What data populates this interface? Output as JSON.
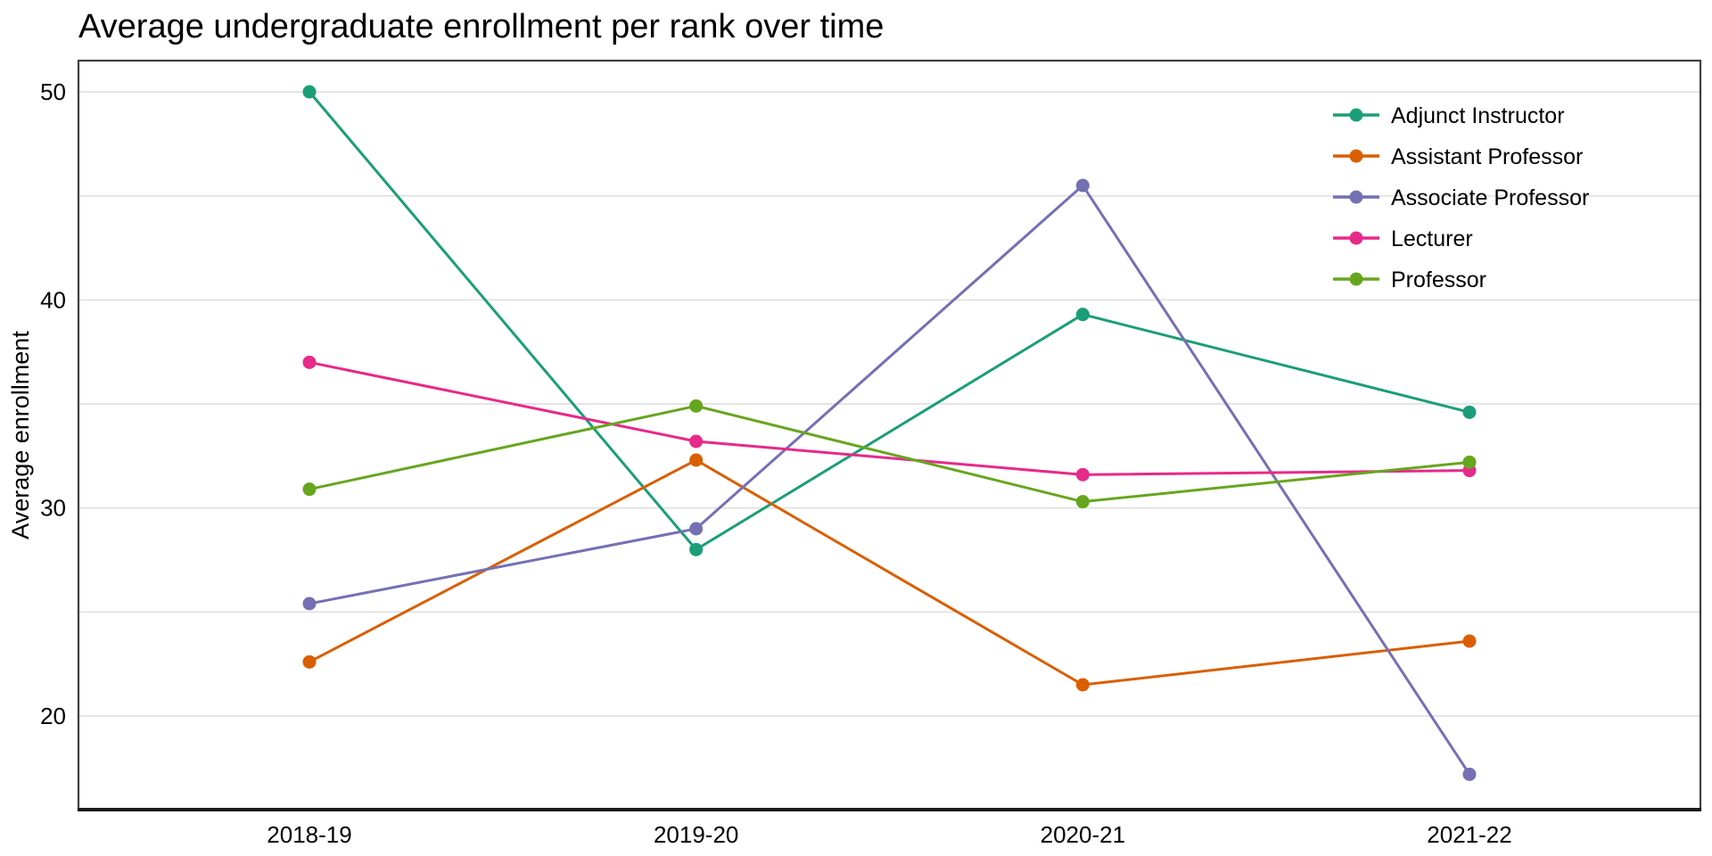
{
  "chart_data": {
    "type": "line",
    "title": "Average undergraduate enrollment per rank over time",
    "xlabel": "",
    "ylabel": "Average enrollment",
    "categories": [
      "2018-19",
      "2019-20",
      "2020-21",
      "2021-22"
    ],
    "series": [
      {
        "name": "Adjunct Instructor",
        "color": "#1b9e77",
        "values": [
          50.0,
          28.0,
          39.3,
          34.6
        ]
      },
      {
        "name": "Assistant Professor",
        "color": "#d95f02",
        "values": [
          22.6,
          32.3,
          21.5,
          23.6
        ]
      },
      {
        "name": "Associate Professor",
        "color": "#7570b3",
        "values": [
          25.4,
          29.0,
          45.5,
          17.2
        ]
      },
      {
        "name": "Lecturer",
        "color": "#e7298a",
        "values": [
          37.0,
          33.2,
          31.6,
          31.8
        ]
      },
      {
        "name": "Professor",
        "color": "#66a61e",
        "values": [
          30.9,
          34.9,
          30.3,
          32.2
        ]
      }
    ],
    "y_ticks": [
      20,
      30,
      40,
      50
    ],
    "gridline_values": [
      20,
      25,
      30,
      35,
      40,
      45,
      50
    ],
    "ylim": [
      15.5,
      51.5
    ],
    "grid": true,
    "legend_position": "top-right",
    "colors": {
      "grid": "#dcdcdc",
      "frame": "#404040",
      "axis": "#1a1a1a",
      "text": "#000000",
      "background": "#ffffff"
    }
  }
}
